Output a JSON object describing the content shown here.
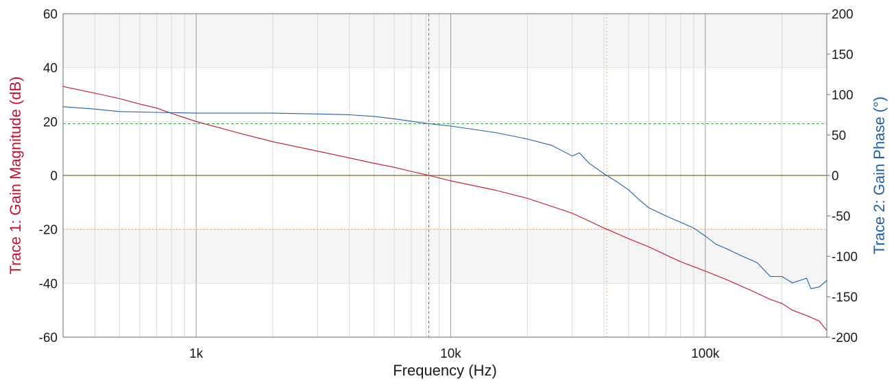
{
  "chart_data": {
    "type": "line",
    "xlabel": "Frequency (Hz)",
    "ylabel_left": "Trace 1: Gain Magnitude (dB)",
    "ylabel_right": "Trace 2: Gain Phase (°)",
    "x_scale": "log",
    "xlim": [
      300,
      300000
    ],
    "ylim_left": [
      -60,
      60
    ],
    "ylim_right": [
      -200,
      200
    ],
    "x_ticks": [
      {
        "value": 1000,
        "label": "1k"
      },
      {
        "value": 10000,
        "label": "10k"
      },
      {
        "value": 100000,
        "label": "100k"
      }
    ],
    "y_ticks_left": [
      "60",
      "40",
      "20",
      "0",
      "-20",
      "-40",
      "-60"
    ],
    "y_ticks_right": [
      "200",
      "150",
      "100",
      "50",
      "0",
      "-50",
      "-100",
      "-150",
      "-200"
    ],
    "shaded_bands_db": [
      [
        40,
        60
      ],
      [
        -40,
        -20
      ]
    ],
    "markers": {
      "crossover_frequency_hz": 8200,
      "phase_margin_deg": 64,
      "phase_crossover_frequency_hz": 41000,
      "gain_margin_db": -20
    },
    "colors": {
      "trace1": "#c8102e",
      "trace2": "#1f5fae",
      "marker_green": "#3aa640",
      "marker_orange": "#f0a060",
      "zero_line": "#7a6a2a"
    },
    "series": [
      {
        "name": "Trace 1: Gain Magnitude (dB)",
        "axis": "left",
        "points": [
          [
            300,
            33
          ],
          [
            400,
            30.5
          ],
          [
            500,
            28.5
          ],
          [
            600,
            26.5
          ],
          [
            700,
            25
          ],
          [
            800,
            23
          ],
          [
            1000,
            20
          ],
          [
            1500,
            15.5
          ],
          [
            2000,
            12.5
          ],
          [
            3000,
            9
          ],
          [
            4000,
            6.5
          ],
          [
            5000,
            4.5
          ],
          [
            6000,
            3
          ],
          [
            7000,
            1.5
          ],
          [
            8200,
            0
          ],
          [
            10000,
            -2
          ],
          [
            15000,
            -5.5
          ],
          [
            20000,
            -8.5
          ],
          [
            30000,
            -14
          ],
          [
            40000,
            -19.5
          ],
          [
            50000,
            -23.5
          ],
          [
            60000,
            -26.5
          ],
          [
            70000,
            -29.5
          ],
          [
            80000,
            -32
          ],
          [
            100000,
            -35.5
          ],
          [
            120000,
            -38.5
          ],
          [
            150000,
            -42.5
          ],
          [
            180000,
            -46
          ],
          [
            200000,
            -47.5
          ],
          [
            220000,
            -50
          ],
          [
            250000,
            -52
          ],
          [
            280000,
            -54
          ],
          [
            300000,
            -57.5
          ]
        ]
      },
      {
        "name": "Trace 2: Gain Phase (°)",
        "axis": "right",
        "points": [
          [
            300,
            85
          ],
          [
            400,
            82
          ],
          [
            500,
            79
          ],
          [
            700,
            78
          ],
          [
            1000,
            77
          ],
          [
            1500,
            77
          ],
          [
            2000,
            77
          ],
          [
            3000,
            76
          ],
          [
            4000,
            75
          ],
          [
            5000,
            73
          ],
          [
            6000,
            70
          ],
          [
            7000,
            67
          ],
          [
            8200,
            64
          ],
          [
            10000,
            61
          ],
          [
            15000,
            53
          ],
          [
            20000,
            45
          ],
          [
            25000,
            37
          ],
          [
            30000,
            24
          ],
          [
            32000,
            28
          ],
          [
            35000,
            15
          ],
          [
            40000,
            2
          ],
          [
            45000,
            -8
          ],
          [
            50000,
            -18
          ],
          [
            55000,
            -30
          ],
          [
            60000,
            -40
          ],
          [
            70000,
            -50
          ],
          [
            80000,
            -58
          ],
          [
            90000,
            -65
          ],
          [
            100000,
            -75
          ],
          [
            110000,
            -85
          ],
          [
            120000,
            -90
          ],
          [
            140000,
            -100
          ],
          [
            160000,
            -108
          ],
          [
            180000,
            -125
          ],
          [
            200000,
            -125
          ],
          [
            220000,
            -133
          ],
          [
            250000,
            -127
          ],
          [
            260000,
            -140
          ],
          [
            280000,
            -138
          ],
          [
            300000,
            -130
          ]
        ]
      }
    ]
  }
}
